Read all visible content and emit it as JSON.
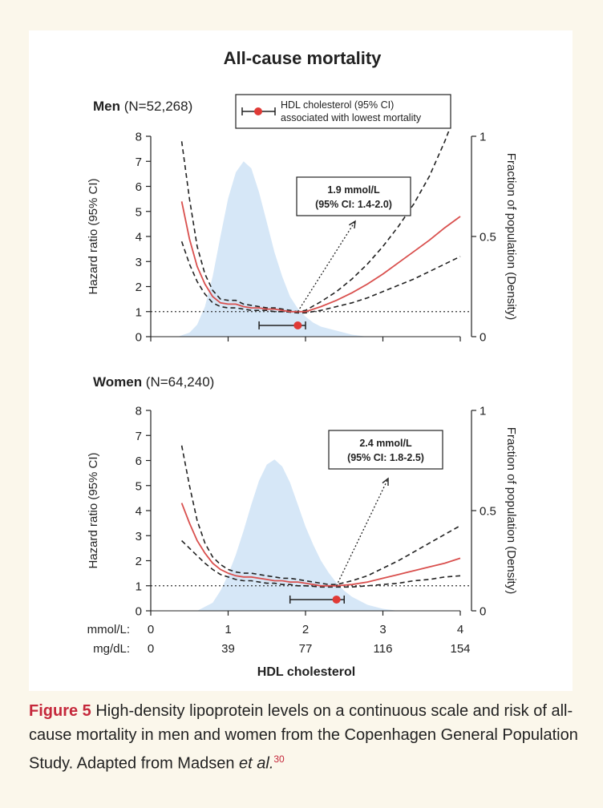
{
  "figure": {
    "title": "All-cause mortality",
    "legend": {
      "line1": "HDL cholesterol (95% CI)",
      "line2": "associated with lowest mortality"
    },
    "xaxis": {
      "title": "HDL cholesterol",
      "unit1_label": "mmol/L:",
      "unit2_label": "mg/dL:",
      "mmol_ticks": [
        "0",
        "1",
        "2",
        "3",
        "4"
      ],
      "mgdl_ticks": [
        "0",
        "39",
        "77",
        "116",
        "154"
      ]
    },
    "left_axis_label": "Hazard ratio (95% CI)",
    "right_axis_label": "Fraction of population (Density)",
    "y_ticks": [
      "0",
      "1",
      "2",
      "3",
      "4",
      "5",
      "6",
      "7",
      "8"
    ],
    "right_ticks": [
      "0",
      "0.5",
      "1"
    ]
  },
  "chart_data": [
    {
      "type": "line",
      "panel": "Men",
      "panel_title_bold": "Men",
      "panel_title_rest": " (N=52,268)",
      "x_range": [
        0,
        4
      ],
      "ylim": [
        0,
        8
      ],
      "right_ylim": [
        0,
        1
      ],
      "reference_line": 1,
      "annotation": {
        "line1": "1.9 mmol/L",
        "line2": "(95% CI: 1.4-2.0)"
      },
      "optimum": {
        "x": 1.9,
        "ci": [
          1.4,
          2.0
        ],
        "y": 0.45
      },
      "hazard_ratio": {
        "x": [
          0.4,
          0.5,
          0.6,
          0.7,
          0.8,
          0.9,
          1.0,
          1.1,
          1.2,
          1.3,
          1.4,
          1.5,
          1.6,
          1.7,
          1.8,
          1.9,
          2.0,
          2.2,
          2.4,
          2.6,
          2.8,
          3.0,
          3.2,
          3.4,
          3.6,
          3.8,
          4.0
        ],
        "estimate": [
          5.4,
          3.9,
          2.8,
          2.1,
          1.6,
          1.35,
          1.3,
          1.3,
          1.2,
          1.15,
          1.15,
          1.1,
          1.1,
          1.05,
          1.0,
          1.0,
          1.0,
          1.2,
          1.45,
          1.75,
          2.1,
          2.5,
          2.95,
          3.4,
          3.85,
          4.35,
          4.8
        ],
        "upper": [
          7.8,
          5.5,
          3.6,
          2.5,
          1.85,
          1.5,
          1.45,
          1.45,
          1.3,
          1.25,
          1.2,
          1.15,
          1.15,
          1.1,
          1.05,
          1.0,
          1.05,
          1.4,
          1.8,
          2.3,
          2.9,
          3.6,
          4.4,
          5.3,
          6.4,
          7.8,
          9.4
        ],
        "lower": [
          3.8,
          2.9,
          2.2,
          1.7,
          1.35,
          1.2,
          1.15,
          1.15,
          1.1,
          1.05,
          1.05,
          1.05,
          1.0,
          1.0,
          0.98,
          0.95,
          0.95,
          1.05,
          1.2,
          1.35,
          1.55,
          1.8,
          2.05,
          2.3,
          2.6,
          2.9,
          3.2
        ]
      },
      "density": {
        "x": [
          0.35,
          0.5,
          0.6,
          0.7,
          0.8,
          0.9,
          1.0,
          1.1,
          1.2,
          1.3,
          1.4,
          1.5,
          1.6,
          1.7,
          1.8,
          1.9,
          2.0,
          2.1,
          2.2,
          2.3,
          2.4,
          2.5,
          2.6,
          2.8,
          3.0
        ],
        "y": [
          0.0,
          0.02,
          0.06,
          0.15,
          0.3,
          0.5,
          0.69,
          0.82,
          0.875,
          0.84,
          0.72,
          0.57,
          0.42,
          0.3,
          0.2,
          0.14,
          0.1,
          0.07,
          0.05,
          0.04,
          0.03,
          0.02,
          0.01,
          0.0,
          0.0
        ]
      }
    },
    {
      "type": "line",
      "panel": "Women",
      "panel_title_bold": "Women",
      "panel_title_rest": " (N=64,240)",
      "x_range": [
        0,
        4
      ],
      "ylim": [
        0,
        8
      ],
      "right_ylim": [
        0,
        1
      ],
      "reference_line": 1,
      "annotation": {
        "line1": "2.4 mmol/L",
        "line2": "(95% CI: 1.8-2.5)"
      },
      "optimum": {
        "x": 2.4,
        "ci": [
          1.8,
          2.5
        ],
        "y": 0.45
      },
      "hazard_ratio": {
        "x": [
          0.4,
          0.5,
          0.6,
          0.7,
          0.8,
          0.9,
          1.0,
          1.1,
          1.2,
          1.3,
          1.4,
          1.5,
          1.6,
          1.7,
          1.8,
          1.9,
          2.0,
          2.1,
          2.2,
          2.3,
          2.4,
          2.6,
          2.8,
          3.0,
          3.2,
          3.4,
          3.6,
          3.8,
          4.0
        ],
        "estimate": [
          4.3,
          3.5,
          2.8,
          2.3,
          1.9,
          1.65,
          1.5,
          1.4,
          1.35,
          1.35,
          1.3,
          1.25,
          1.2,
          1.2,
          1.15,
          1.15,
          1.1,
          1.05,
          1.0,
          1.0,
          1.0,
          1.05,
          1.15,
          1.3,
          1.45,
          1.6,
          1.75,
          1.9,
          2.1
        ],
        "upper": [
          6.6,
          5.0,
          3.6,
          2.7,
          2.15,
          1.85,
          1.65,
          1.55,
          1.5,
          1.5,
          1.45,
          1.4,
          1.35,
          1.3,
          1.3,
          1.25,
          1.2,
          1.15,
          1.1,
          1.05,
          1.05,
          1.2,
          1.4,
          1.7,
          2.0,
          2.35,
          2.7,
          3.05,
          3.4
        ],
        "lower": [
          2.8,
          2.5,
          2.2,
          1.9,
          1.65,
          1.45,
          1.35,
          1.25,
          1.2,
          1.2,
          1.15,
          1.1,
          1.1,
          1.05,
          1.05,
          1.0,
          1.0,
          0.98,
          0.95,
          0.95,
          0.95,
          0.95,
          1.0,
          1.05,
          1.1,
          1.2,
          1.25,
          1.35,
          1.4
        ]
      },
      "density": {
        "x": [
          0.6,
          0.8,
          0.9,
          1.0,
          1.1,
          1.2,
          1.3,
          1.4,
          1.5,
          1.6,
          1.7,
          1.8,
          1.9,
          2.0,
          2.1,
          2.2,
          2.3,
          2.4,
          2.5,
          2.6,
          2.7,
          2.8,
          2.9,
          3.0,
          3.2
        ],
        "y": [
          0.0,
          0.04,
          0.1,
          0.18,
          0.28,
          0.4,
          0.53,
          0.65,
          0.73,
          0.755,
          0.72,
          0.64,
          0.53,
          0.42,
          0.33,
          0.25,
          0.19,
          0.14,
          0.1,
          0.07,
          0.05,
          0.03,
          0.02,
          0.01,
          0.0
        ]
      }
    }
  ],
  "caption": {
    "label": "Figure 5",
    "text": " High-density lipoprotein levels on a continuous scale and risk of all-cause mortality in men and women from the Copenhagen General Population Study. Adapted from Madsen ",
    "etal": "et al.",
    "ref": "30"
  },
  "colors": {
    "estimate": "#d9504e",
    "ci": "#222222",
    "density": "#d6e7f7",
    "optimum_dot": "#e03a36",
    "caption_label": "#c5283b"
  }
}
